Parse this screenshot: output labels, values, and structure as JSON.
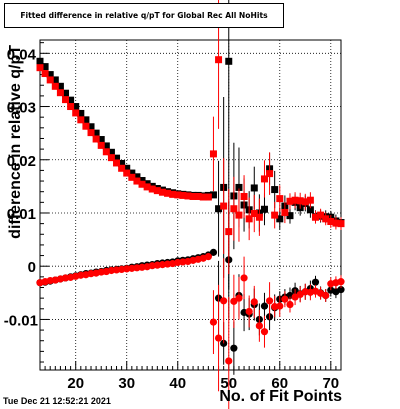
{
  "title": "Fitted difference in relative q/pT for Global Rec All NoHits",
  "timestamp": "Tue Dec 21 12:52:21 2021",
  "chart_data": {
    "type": "scatter",
    "title": "Fitted difference in relative q/pT for Global Rec All NoHits",
    "xlabel": "No. of Fit Points",
    "ylabel": "difference in relative q/pT",
    "xlim": [
      13,
      72
    ],
    "ylim": [
      -0.0195,
      0.0425
    ],
    "xticks": [
      20,
      30,
      40,
      50,
      60,
      70
    ],
    "xtick_labels": [
      "20",
      "30",
      "40",
      "50",
      "60",
      "70"
    ],
    "yticks": [
      -0.01,
      0,
      0.01,
      0.02,
      0.03,
      0.04
    ],
    "ytick_labels": [
      "-0.01",
      "0",
      "0.01",
      "0.02",
      "0.03",
      "0.04"
    ],
    "grid": true,
    "series": [
      {
        "color": "#000000",
        "marker": "square",
        "points": [
          [
            13,
            0.0385,
            0
          ],
          [
            14,
            0.0375,
            0
          ],
          [
            15,
            0.036,
            0
          ],
          [
            16,
            0.035,
            0
          ],
          [
            17,
            0.0338,
            0
          ],
          [
            18,
            0.0325,
            0
          ],
          [
            19,
            0.0312,
            0
          ],
          [
            20,
            0.03,
            0
          ],
          [
            21,
            0.0287,
            0
          ],
          [
            22,
            0.0275,
            0
          ],
          [
            23,
            0.0262,
            0
          ],
          [
            24,
            0.025,
            0
          ],
          [
            25,
            0.0238,
            0
          ],
          [
            26,
            0.0226,
            0
          ],
          [
            27,
            0.0214,
            0
          ],
          [
            28,
            0.0203,
            0
          ],
          [
            29,
            0.0193,
            0
          ],
          [
            30,
            0.0184,
            0
          ],
          [
            31,
            0.0175,
            0
          ],
          [
            32,
            0.0168,
            0
          ],
          [
            33,
            0.0161,
            0
          ],
          [
            34,
            0.0155,
            0
          ],
          [
            35,
            0.015,
            0
          ],
          [
            36,
            0.0146,
            0
          ],
          [
            37,
            0.0143,
            0
          ],
          [
            38,
            0.014,
            0
          ],
          [
            39,
            0.0138,
            0
          ],
          [
            40,
            0.0136,
            0
          ],
          [
            41,
            0.0135,
            0
          ],
          [
            42,
            0.0134,
            0
          ],
          [
            43,
            0.0133,
            0
          ],
          [
            44,
            0.0133,
            0
          ],
          [
            45,
            0.0132,
            0
          ],
          [
            46,
            0.0133,
            0
          ],
          [
            47,
            0.0134,
            0.0004
          ],
          [
            48,
            0.0108,
            0.009
          ],
          [
            49,
            0.0148,
            0.017
          ],
          [
            50,
            0.0385,
            0.0428
          ],
          [
            51,
            0.0132,
            0.01
          ],
          [
            52,
            0.0148,
            0.0075
          ],
          [
            53,
            0.0115,
            0.005
          ],
          [
            54,
            0.0106,
            0.0035
          ],
          [
            55,
            0.0147,
            0.004
          ],
          [
            56,
            0.01,
            0.0035
          ],
          [
            57,
            0.0107,
            0.003
          ],
          [
            58,
            0.0183,
            0.003
          ],
          [
            59,
            0.0144,
            0.0035
          ],
          [
            60,
            0.0089,
            0.002
          ],
          [
            61,
            0.0113,
            0.002
          ],
          [
            62,
            0.0095,
            0.0015
          ],
          [
            63,
            0.012,
            0.0015
          ],
          [
            64,
            0.011,
            0.0015
          ],
          [
            65,
            0.0118,
            0.0015
          ],
          [
            66,
            0.0106,
            0.0015
          ],
          [
            67,
            0.0093,
            0.0012
          ],
          [
            68,
            0.0094,
            0.0012
          ],
          [
            69,
            0.0093,
            0.0012
          ],
          [
            70,
            0.0092,
            0.0012
          ],
          [
            71,
            0.0085,
            0.0012
          ],
          [
            72,
            0.0082,
            0.0012
          ]
        ]
      },
      {
        "color": "#000000",
        "marker": "circle",
        "points": [
          [
            13,
            -0.0031,
            0
          ],
          [
            14,
            -0.003,
            0
          ],
          [
            15,
            -0.0028,
            0
          ],
          [
            16,
            -0.0026,
            0
          ],
          [
            17,
            -0.0024,
            0
          ],
          [
            18,
            -0.0022,
            0
          ],
          [
            19,
            -0.002,
            0
          ],
          [
            20,
            -0.0018,
            0
          ],
          [
            21,
            -0.0016,
            0
          ],
          [
            22,
            -0.0014,
            0
          ],
          [
            23,
            -0.0013,
            0
          ],
          [
            24,
            -0.0011,
            0
          ],
          [
            25,
            -0.001,
            0
          ],
          [
            26,
            -0.0008,
            0
          ],
          [
            27,
            -0.0007,
            0
          ],
          [
            28,
            -0.0006,
            0
          ],
          [
            29,
            -0.0005,
            0
          ],
          [
            30,
            -0.0004,
            0
          ],
          [
            31,
            -0.0002,
            0
          ],
          [
            32,
            -0.0001,
            0
          ],
          [
            33,
            0.0001,
            0
          ],
          [
            34,
            0.0002,
            0
          ],
          [
            35,
            0.0003,
            0
          ],
          [
            36,
            0.0005,
            0
          ],
          [
            37,
            0.0006,
            0
          ],
          [
            38,
            0.0007,
            0
          ],
          [
            39,
            0.0008,
            0
          ],
          [
            40,
            0.001,
            0
          ],
          [
            41,
            0.0011,
            0
          ],
          [
            42,
            0.0012,
            0
          ],
          [
            43,
            0.0014,
            0
          ],
          [
            44,
            0.0016,
            0
          ],
          [
            45,
            0.0018,
            0
          ],
          [
            46,
            0.0021,
            0.0003
          ],
          [
            47,
            0.0026,
            0.0005
          ],
          [
            48,
            -0.006,
            0.007
          ],
          [
            49,
            -0.0145,
            0.004
          ],
          [
            50,
            0.0012,
            0.011
          ],
          [
            51,
            -0.0154,
            0.005
          ],
          [
            52,
            -0.0055,
            0.004
          ],
          [
            53,
            -0.0087,
            0.0035
          ],
          [
            54,
            -0.009,
            0.003
          ],
          [
            55,
            -0.0072,
            0.003
          ],
          [
            56,
            -0.01,
            0.003
          ],
          [
            57,
            -0.0075,
            0.0025
          ],
          [
            58,
            -0.0095,
            0.0025
          ],
          [
            59,
            -0.0078,
            0.0025
          ],
          [
            60,
            -0.0062,
            0.0015
          ],
          [
            61,
            -0.0058,
            0.0015
          ],
          [
            62,
            -0.0055,
            0.0015
          ],
          [
            63,
            -0.0046,
            0.0015
          ],
          [
            64,
            -0.0052,
            0.0015
          ],
          [
            65,
            -0.0048,
            0.0015
          ],
          [
            66,
            -0.0042,
            0.0015
          ],
          [
            67,
            -0.003,
            0.0012
          ],
          [
            68,
            -0.005,
            0.0012
          ],
          [
            69,
            -0.0055,
            0.0012
          ],
          [
            70,
            -0.0045,
            0.0012
          ],
          [
            71,
            -0.0048,
            0.0012
          ],
          [
            72,
            -0.0044,
            0.0012
          ]
        ]
      },
      {
        "color": "#ff0000",
        "marker": "square",
        "points": [
          [
            13,
            0.0373,
            0
          ],
          [
            14,
            0.0362,
            0
          ],
          [
            15,
            0.035,
            0
          ],
          [
            16,
            0.0338,
            0
          ],
          [
            17,
            0.0326,
            0
          ],
          [
            18,
            0.0313,
            0
          ],
          [
            19,
            0.03,
            0
          ],
          [
            20,
            0.0288,
            0
          ],
          [
            21,
            0.0275,
            0
          ],
          [
            22,
            0.0263,
            0
          ],
          [
            23,
            0.0251,
            0
          ],
          [
            24,
            0.0239,
            0
          ],
          [
            25,
            0.0227,
            0
          ],
          [
            26,
            0.0215,
            0
          ],
          [
            27,
            0.0204,
            0
          ],
          [
            28,
            0.0194,
            0
          ],
          [
            29,
            0.0184,
            0
          ],
          [
            30,
            0.0175,
            0
          ],
          [
            31,
            0.0167,
            0
          ],
          [
            32,
            0.016,
            0
          ],
          [
            33,
            0.0154,
            0
          ],
          [
            34,
            0.0149,
            0
          ],
          [
            35,
            0.0145,
            0
          ],
          [
            36,
            0.0142,
            0
          ],
          [
            37,
            0.0139,
            0
          ],
          [
            38,
            0.0137,
            0
          ],
          [
            39,
            0.0135,
            0
          ],
          [
            40,
            0.0134,
            0
          ],
          [
            41,
            0.0133,
            0
          ],
          [
            42,
            0.0132,
            0
          ],
          [
            43,
            0.0131,
            0
          ],
          [
            44,
            0.0131,
            0
          ],
          [
            45,
            0.013,
            0
          ],
          [
            46,
            0.013,
            0
          ],
          [
            47,
            0.0211,
            0.007
          ],
          [
            48,
            0.0388,
            0.013
          ],
          [
            49,
            0.0113,
            0.009
          ],
          [
            50,
            0.0065,
            0.008
          ],
          [
            51,
            0.0108,
            0.006
          ],
          [
            52,
            0.0096,
            0.005
          ],
          [
            53,
            0.0131,
            0.004
          ],
          [
            54,
            0.0089,
            0.004
          ],
          [
            55,
            0.0099,
            0.0035
          ],
          [
            56,
            0.0092,
            0.0035
          ],
          [
            57,
            0.0164,
            0.0035
          ],
          [
            58,
            0.0174,
            0.004
          ],
          [
            59,
            0.0096,
            0.0025
          ],
          [
            60,
            0.0127,
            0.0025
          ],
          [
            61,
            0.0101,
            0.002
          ],
          [
            62,
            0.0122,
            0.0015
          ],
          [
            63,
            0.0124,
            0.0015
          ],
          [
            64,
            0.0123,
            0.0015
          ],
          [
            65,
            0.0121,
            0.0015
          ],
          [
            66,
            0.0124,
            0.0015
          ],
          [
            67,
            0.0092,
            0.0012
          ],
          [
            68,
            0.0096,
            0.0012
          ],
          [
            69,
            0.0089,
            0.0012
          ],
          [
            70,
            0.0084,
            0.0012
          ],
          [
            71,
            0.0081,
            0.0012
          ],
          [
            72,
            0.008,
            0.0012
          ]
        ]
      },
      {
        "color": "#ff0000",
        "marker": "circle",
        "points": [
          [
            13,
            -0.0031,
            0
          ],
          [
            14,
            -0.0029,
            0
          ],
          [
            15,
            -0.0027,
            0
          ],
          [
            16,
            -0.0026,
            0
          ],
          [
            17,
            -0.0024,
            0
          ],
          [
            18,
            -0.0022,
            0
          ],
          [
            19,
            -0.0021,
            0
          ],
          [
            20,
            -0.0019,
            0
          ],
          [
            21,
            -0.0017,
            0
          ],
          [
            22,
            -0.0016,
            0
          ],
          [
            23,
            -0.0014,
            0
          ],
          [
            24,
            -0.0013,
            0
          ],
          [
            25,
            -0.0011,
            0
          ],
          [
            26,
            -0.001,
            0
          ],
          [
            27,
            -0.0008,
            0
          ],
          [
            28,
            -0.0007,
            0
          ],
          [
            29,
            -0.0006,
            0
          ],
          [
            30,
            -0.0005,
            0
          ],
          [
            31,
            -0.0004,
            0
          ],
          [
            32,
            -0.0003,
            0
          ],
          [
            33,
            -0.0002,
            0
          ],
          [
            34,
            -0.0001,
            0
          ],
          [
            35,
            0.0001,
            0
          ],
          [
            36,
            0.0002,
            0
          ],
          [
            37,
            0.0003,
            0
          ],
          [
            38,
            0.0004,
            0
          ],
          [
            39,
            0.0005,
            0
          ],
          [
            40,
            0.0007,
            0
          ],
          [
            41,
            0.0008,
            0
          ],
          [
            42,
            0.0009,
            0
          ],
          [
            43,
            0.0011,
            0
          ],
          [
            44,
            0.0013,
            0
          ],
          [
            45,
            0.0015,
            0
          ],
          [
            46,
            0.0018,
            0.0003
          ],
          [
            47,
            -0.0105,
            0.006
          ],
          [
            48,
            -0.0135,
            0.01
          ],
          [
            49,
            -0.0065,
            0.008
          ],
          [
            50,
            -0.0178,
            0.012
          ],
          [
            51,
            -0.0066,
            0.005
          ],
          [
            52,
            -0.006,
            0.004
          ],
          [
            53,
            -0.0022,
            0.004
          ],
          [
            54,
            -0.0085,
            0.003
          ],
          [
            55,
            -0.0067,
            0.003
          ],
          [
            56,
            -0.0112,
            0.003
          ],
          [
            57,
            -0.0123,
            0.003
          ],
          [
            58,
            -0.0065,
            0.0035
          ],
          [
            59,
            -0.0076,
            0.002
          ],
          [
            60,
            -0.0075,
            0.002
          ],
          [
            61,
            -0.0062,
            0.0015
          ],
          [
            62,
            -0.0072,
            0.0015
          ],
          [
            63,
            -0.0058,
            0.0015
          ],
          [
            64,
            -0.0053,
            0.0015
          ],
          [
            65,
            -0.0048,
            0.0015
          ],
          [
            66,
            -0.0049,
            0.0015
          ],
          [
            67,
            -0.0047,
            0.0012
          ],
          [
            68,
            -0.0051,
            0.0012
          ],
          [
            69,
            -0.0055,
            0.0012
          ],
          [
            70,
            -0.0033,
            0.0012
          ],
          [
            71,
            -0.0031,
            0.0012
          ],
          [
            72,
            -0.0029,
            0.0012
          ]
        ]
      }
    ]
  }
}
